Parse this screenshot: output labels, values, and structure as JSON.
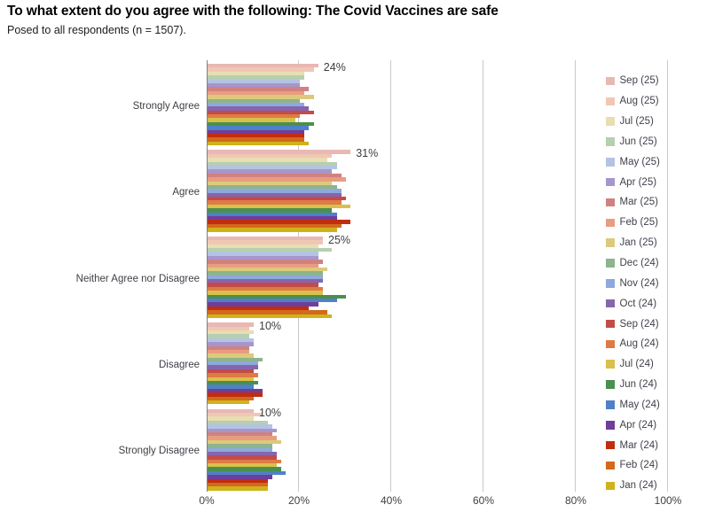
{
  "title": "To what extent do you agree with the following: The Covid Vaccines are safe",
  "subtitle": "Posed to all respondents (n = 1507).",
  "chart_data": {
    "type": "bar",
    "orientation": "horizontal",
    "grid": true,
    "legend_position": "right",
    "xlim": [
      0,
      100
    ],
    "x_ticks": [
      "0%",
      "20%",
      "40%",
      "60%",
      "80%",
      "100%"
    ],
    "categories": [
      "Strongly Agree",
      "Agree",
      "Neither Agree nor Disagree",
      "Disagree",
      "Strongly Disagree"
    ],
    "value_labels": [
      "24%",
      "31%",
      "25%",
      "10%",
      "10%"
    ],
    "series": [
      {
        "name": "Sep (25)",
        "color": "#e8b8b4",
        "values": [
          24,
          31,
          25,
          10,
          10
        ]
      },
      {
        "name": "Aug (25)",
        "color": "#f0c7b4",
        "values": [
          23,
          27,
          25,
          9,
          12
        ]
      },
      {
        "name": "Jul (25)",
        "color": "#e9ddb2",
        "values": [
          21,
          26,
          24,
          10,
          10
        ]
      },
      {
        "name": "Jun (25)",
        "color": "#b6cfb1",
        "values": [
          21,
          28,
          27,
          9,
          13
        ]
      },
      {
        "name": "May (25)",
        "color": "#b4c3e3",
        "values": [
          20,
          28,
          24,
          10,
          14
        ]
      },
      {
        "name": "Apr (25)",
        "color": "#a796cb",
        "values": [
          20,
          27,
          24,
          10,
          15
        ]
      },
      {
        "name": "Mar (25)",
        "color": "#d08280",
        "values": [
          22,
          29,
          25,
          9,
          14
        ]
      },
      {
        "name": "Feb (25)",
        "color": "#e89d80",
        "values": [
          21,
          30,
          24,
          9,
          15
        ]
      },
      {
        "name": "Jan (25)",
        "color": "#ddc97d",
        "values": [
          23,
          27,
          26,
          10,
          16
        ]
      },
      {
        "name": "Dec (24)",
        "color": "#8db48c",
        "values": [
          20,
          28,
          25,
          12,
          14
        ]
      },
      {
        "name": "Nov (24)",
        "color": "#8ea9dc",
        "values": [
          21,
          29,
          25,
          11,
          14
        ]
      },
      {
        "name": "Oct (24)",
        "color": "#8765ae",
        "values": [
          22,
          29,
          25,
          11,
          15
        ]
      },
      {
        "name": "Sep (24)",
        "color": "#c14c49",
        "values": [
          23,
          30,
          24,
          10,
          15
        ]
      },
      {
        "name": "Aug (24)",
        "color": "#de7b44",
        "values": [
          20,
          29,
          25,
          11,
          16
        ]
      },
      {
        "name": "Jul (24)",
        "color": "#d9c04d",
        "values": [
          19,
          31,
          25,
          10,
          15
        ]
      },
      {
        "name": "Jun (24)",
        "color": "#4b8f4e",
        "values": [
          23,
          27,
          30,
          11,
          16
        ]
      },
      {
        "name": "May (24)",
        "color": "#4f81c7",
        "values": [
          22,
          28,
          28,
          10,
          17
        ]
      },
      {
        "name": "Apr (24)",
        "color": "#703d9b",
        "values": [
          21,
          28,
          24,
          12,
          14
        ]
      },
      {
        "name": "Mar (24)",
        "color": "#c02d11",
        "values": [
          21,
          31,
          22,
          12,
          13
        ]
      },
      {
        "name": "Feb (24)",
        "color": "#d2691d",
        "values": [
          21,
          29,
          26,
          10,
          13
        ]
      },
      {
        "name": "Jan (24)",
        "color": "#cfb31c",
        "values": [
          22,
          28,
          27,
          9,
          13
        ]
      }
    ]
  }
}
